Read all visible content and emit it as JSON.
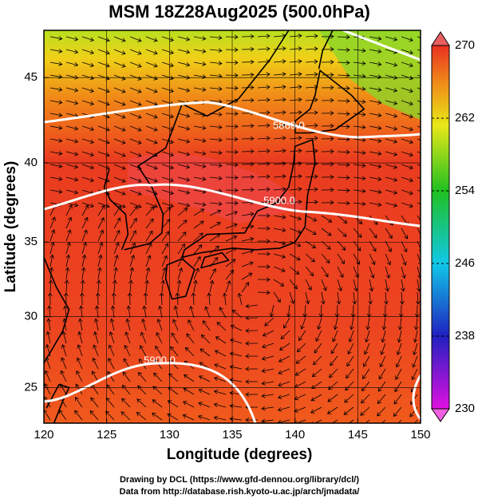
{
  "map": {
    "title": "MSM 18Z28Aug2025 (500.0hPa)",
    "xlabel": "Longitude (degrees)",
    "ylabel": "Latitude  (degrees)",
    "xlim": [
      120,
      150
    ],
    "ylim": [
      22.4,
      47.6
    ],
    "xticks": [
      120,
      125,
      130,
      135,
      140,
      145,
      150
    ],
    "yticks": [
      25,
      30,
      35,
      40,
      45
    ],
    "colorbar": {
      "lim": [
        230,
        270
      ],
      "ticks": [
        230,
        238,
        246,
        254,
        262,
        270
      ]
    },
    "contour_labels": [
      "5860.0",
      "5900.0",
      "5900.0"
    ],
    "footer": [
      "Drawing by DCL (https://www.gfd-dennou.org/library/dcl/)",
      "Data from http://database.rish.kyoto-u.ac.jp/arch/jmadata/"
    ]
  }
}
